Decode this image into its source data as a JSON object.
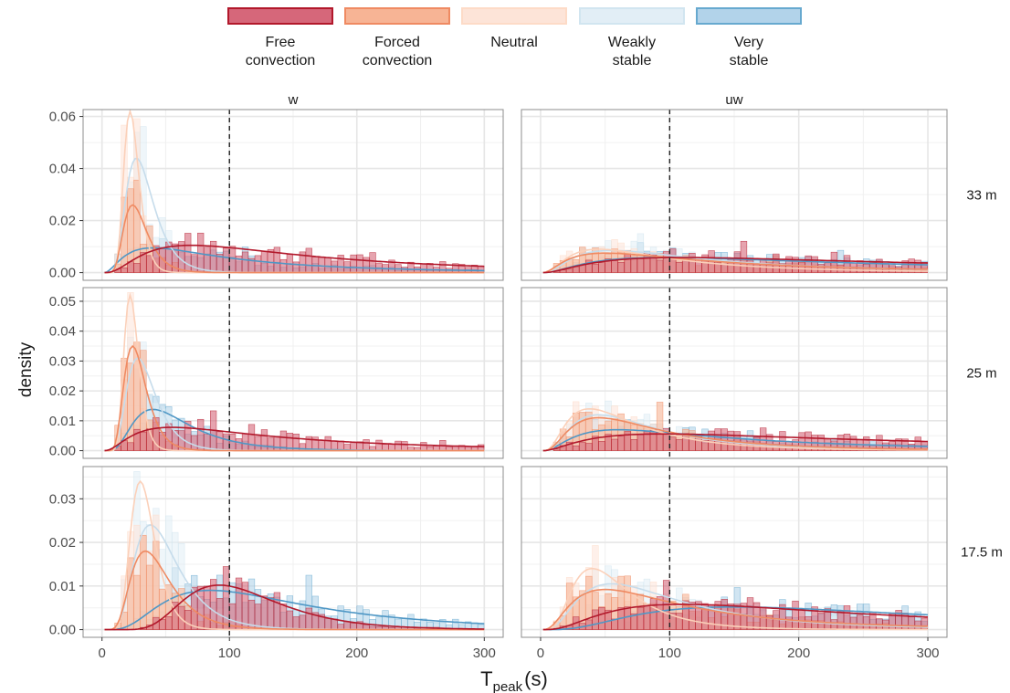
{
  "chart_data": {
    "type": "histogram",
    "xlabel_main": "T",
    "xlabel_sub": "peak",
    "xlabel_unit": "(s)",
    "ylabel": "density",
    "xlim": [
      0,
      300
    ],
    "x_ticks": [
      "0",
      "100",
      "200",
      "300"
    ],
    "reference_line_x": 100,
    "columns": [
      "w",
      "uw"
    ],
    "rows": [
      {
        "label": "33 m",
        "ylim": [
          0,
          0.062
        ],
        "y_ticks": [
          "0.00",
          "0.02",
          "0.04",
          "0.06"
        ]
      },
      {
        "label": "25 m",
        "ylim": [
          0,
          0.054
        ],
        "y_ticks": [
          "0.00",
          "0.01",
          "0.02",
          "0.03",
          "0.04",
          "0.05"
        ]
      },
      {
        "label": "17.5 m",
        "ylim": [
          0,
          0.037
        ],
        "y_ticks": [
          "0.00",
          "0.01",
          "0.02",
          "0.03"
        ]
      }
    ],
    "legend": {
      "position": "top",
      "entries": [
        {
          "label_line1": "Free",
          "label_line2": "convection",
          "fill": "#d6677a",
          "stroke": "#b2182b",
          "line": "#b2182b"
        },
        {
          "label_line1": "Forced",
          "label_line2": "convection",
          "fill": "#f7b495",
          "stroke": "#ef8a62",
          "line": "#ef8a62"
        },
        {
          "label_line1": "Neutral",
          "label_line2": "",
          "fill": "#fde4d8",
          "stroke": "#fddbc7",
          "line": "#fbd0b9"
        },
        {
          "label_line1": "Weakly",
          "label_line2": "stable",
          "fill": "#e2eef6",
          "stroke": "#d1e5f0",
          "line": "#c6dceb"
        },
        {
          "label_line1": "Very",
          "label_line2": "stable",
          "fill": "#b2d3ea",
          "stroke": "#67a9cf",
          "line": "#4f97c5"
        }
      ]
    },
    "panels": [
      {
        "row": 0,
        "col": 0,
        "curves": [
          {
            "type": "lognormal",
            "amplitude": 0.0105,
            "peak": 70,
            "width": 0.85
          },
          {
            "type": "lognormal",
            "amplitude": 0.026,
            "peak": 24,
            "width": 0.38
          },
          {
            "type": "lognormal",
            "amplitude": 0.062,
            "peak": 22,
            "width": 0.27
          },
          {
            "type": "lognormal",
            "amplitude": 0.044,
            "peak": 27,
            "width": 0.4
          },
          {
            "type": "lognormal",
            "amplitude": 0.0095,
            "peak": 40,
            "width": 0.9
          }
        ]
      },
      {
        "row": 0,
        "col": 1,
        "curves": [
          {
            "type": "lognormal",
            "amplitude": 0.0058,
            "peak": 110,
            "width": 1.05
          },
          {
            "type": "lognormal",
            "amplitude": 0.0075,
            "peak": 50,
            "width": 0.95
          },
          {
            "type": "lognormal",
            "amplitude": 0.009,
            "peak": 45,
            "width": 0.8
          },
          {
            "type": "lognormal",
            "amplitude": 0.0085,
            "peak": 55,
            "width": 0.85
          },
          {
            "type": "lognormal",
            "amplitude": 0.0058,
            "peak": 95,
            "width": 1.0
          }
        ]
      },
      {
        "row": 1,
        "col": 0,
        "curves": [
          {
            "type": "lognormal",
            "amplitude": 0.0078,
            "peak": 55,
            "width": 0.9
          },
          {
            "type": "lognormal",
            "amplitude": 0.035,
            "peak": 24,
            "width": 0.36
          },
          {
            "type": "lognormal",
            "amplitude": 0.052,
            "peak": 22,
            "width": 0.26
          },
          {
            "type": "lognormal",
            "amplitude": 0.031,
            "peak": 28,
            "width": 0.4
          },
          {
            "type": "lognormal",
            "amplitude": 0.0138,
            "peak": 40,
            "width": 0.55
          }
        ]
      },
      {
        "row": 1,
        "col": 1,
        "curves": [
          {
            "type": "lognormal",
            "amplitude": 0.0056,
            "peak": 95,
            "width": 1.05
          },
          {
            "type": "lognormal",
            "amplitude": 0.011,
            "peak": 45,
            "width": 0.75
          },
          {
            "type": "lognormal",
            "amplitude": 0.014,
            "peak": 38,
            "width": 0.7
          },
          {
            "type": "lognormal",
            "amplitude": 0.012,
            "peak": 45,
            "width": 0.7
          },
          {
            "type": "lognormal",
            "amplitude": 0.007,
            "peak": 60,
            "width": 0.9
          }
        ]
      },
      {
        "row": 2,
        "col": 0,
        "curves": [
          {
            "type": "lognormal",
            "amplitude": 0.0102,
            "peak": 92,
            "width": 0.4
          },
          {
            "type": "lognormal",
            "amplitude": 0.018,
            "peak": 34,
            "width": 0.45
          },
          {
            "type": "lognormal",
            "amplitude": 0.034,
            "peak": 30,
            "width": 0.32
          },
          {
            "type": "lognormal",
            "amplitude": 0.024,
            "peak": 38,
            "width": 0.45
          },
          {
            "type": "lognormal",
            "amplitude": 0.009,
            "peak": 85,
            "width": 0.65
          }
        ]
      },
      {
        "row": 2,
        "col": 1,
        "curves": [
          {
            "type": "lognormal",
            "amplitude": 0.0058,
            "peak": 110,
            "width": 0.85
          },
          {
            "type": "lognormal",
            "amplitude": 0.0092,
            "peak": 50,
            "width": 0.8
          },
          {
            "type": "lognormal",
            "amplitude": 0.014,
            "peak": 40,
            "width": 0.55
          },
          {
            "type": "lognormal",
            "amplitude": 0.0105,
            "peak": 55,
            "width": 0.7
          },
          {
            "type": "lognormal",
            "amplitude": 0.0052,
            "peak": 150,
            "width": 0.75
          }
        ]
      }
    ]
  }
}
